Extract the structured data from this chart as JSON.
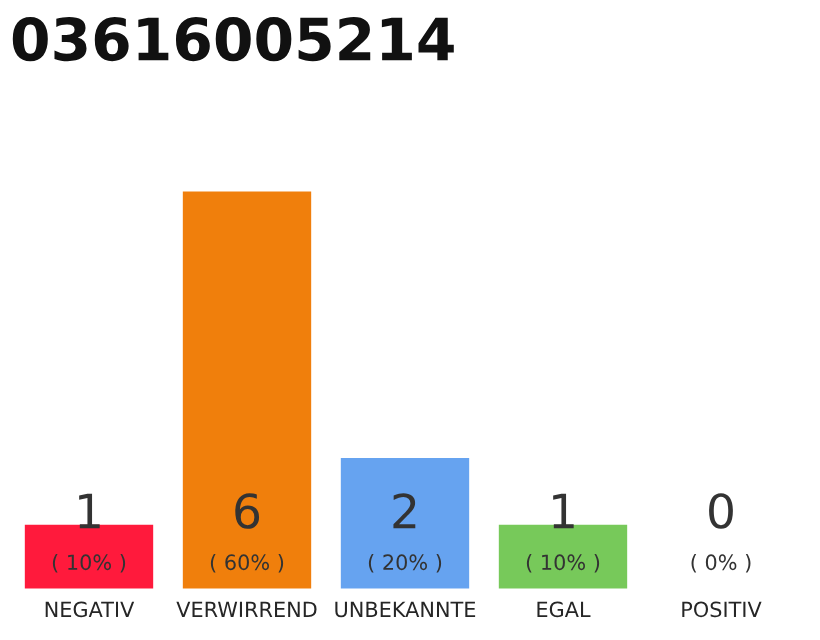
{
  "chart_data": {
    "type": "bar",
    "title": "03616005214",
    "categories": [
      "NEGATIV",
      "VERWIRREND",
      "UNBEKANNTE",
      "EGAL",
      "POSITIV"
    ],
    "values": [
      1,
      6,
      2,
      1,
      0
    ],
    "colors": [
      "#ff1a3c",
      "#f07f0c",
      "#66a3f0",
      "#77c95a",
      "#ffffff"
    ],
    "value_labels": [
      "1\n( 10% )",
      "6\n( 60% )",
      "2\n( 20% )",
      "1\n( 10% )",
      "0\n( 0% )"
    ],
    "ylim": [
      0,
      6
    ],
    "tick_labels": "x",
    "grid": false,
    "legend": false
  }
}
